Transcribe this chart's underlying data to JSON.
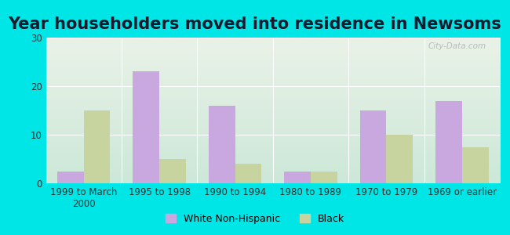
{
  "title": "Year householders moved into residence in Newsoms",
  "categories": [
    "1999 to March\n2000",
    "1995 to 1998",
    "1990 to 1994",
    "1980 to 1989",
    "1970 to 1979",
    "1969 or earlier"
  ],
  "white_non_hispanic": [
    2.5,
    23.0,
    16.0,
    2.5,
    15.0,
    17.0
  ],
  "black": [
    15.0,
    5.0,
    4.0,
    2.5,
    10.0,
    7.5
  ],
  "white_color": "#c9a8e0",
  "black_color": "#c8d4a0",
  "background_outer": "#00e5e5",
  "background_inner_top": "#eaf2e8",
  "background_inner_bottom": "#cce8d8",
  "ylim": [
    0,
    30
  ],
  "yticks": [
    0,
    10,
    20,
    30
  ],
  "bar_width": 0.35,
  "title_fontsize": 15,
  "tick_fontsize": 8.5,
  "legend_fontsize": 9,
  "watermark": "City-Data.com"
}
